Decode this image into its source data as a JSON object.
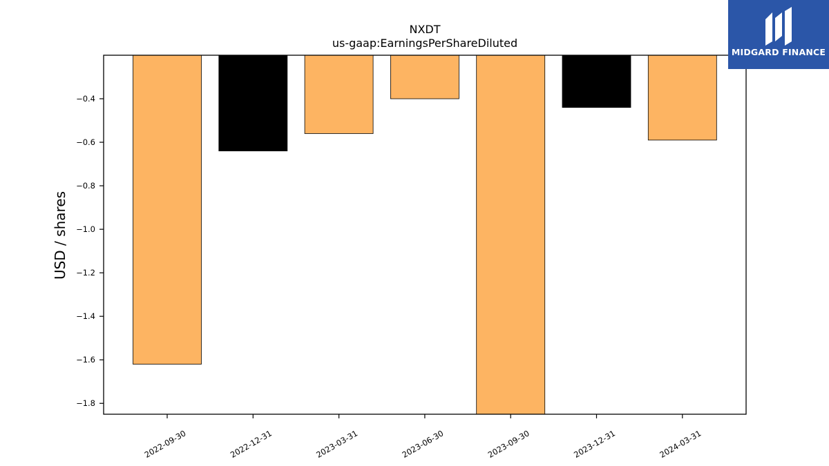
{
  "chart_data": {
    "type": "bar",
    "title": "NXDT",
    "subtitle": "us-gaap:EarningsPerShareDiluted",
    "xlabel": "",
    "ylabel": "USD / shares",
    "categories": [
      "2022-09-30",
      "2022-12-31",
      "2023-03-31",
      "2023-06-30",
      "2023-09-30",
      "2023-12-31",
      "2024-03-31"
    ],
    "values": [
      -1.62,
      -0.64,
      -0.56,
      -0.4,
      -1.85,
      -0.44,
      -0.59
    ],
    "bar_colors": [
      "#fdb462",
      "#000000",
      "#fdb462",
      "#fdb462",
      "#fdb462",
      "#000000",
      "#fdb462"
    ],
    "ylim": [
      -1.85,
      -0.2
    ],
    "yticks": [
      -1.8,
      -1.6,
      -1.4,
      -1.2,
      -1.0,
      -0.8,
      -0.6,
      -0.4
    ],
    "ytick_labels": [
      "−1.8",
      "−1.6",
      "−1.4",
      "−1.2",
      "−1.0",
      "−0.8",
      "−0.6",
      "−0.4"
    ],
    "grid": false,
    "legend": "none"
  },
  "logo": {
    "text": "MIDGARD FINANCE",
    "background": "#2b56a8",
    "icon": "midgard-logo-icon"
  }
}
